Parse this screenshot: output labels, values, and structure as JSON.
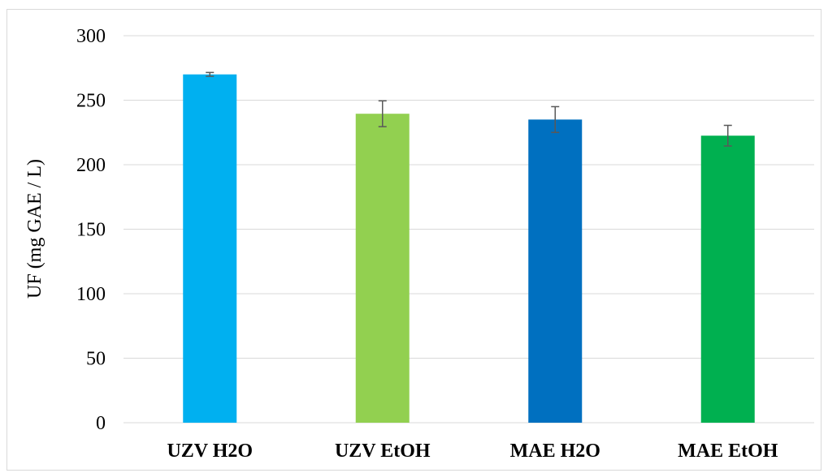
{
  "chart_data": {
    "type": "bar",
    "title": "",
    "xlabel": "",
    "ylabel": "UF (mg GAE / L)",
    "categories": [
      "UZV H2O",
      "UZV EtOH",
      "MAE H2O",
      "MAE EtOH"
    ],
    "values": [
      270,
      239.5,
      235,
      222.5
    ],
    "errors": [
      1.5,
      10,
      10,
      8
    ],
    "colors": [
      "#00b0f0",
      "#92d050",
      "#0070c0",
      "#00b050"
    ],
    "error_bar_color": "#595959",
    "ylim": [
      0,
      300
    ],
    "yticks": [
      0,
      50,
      100,
      150,
      200,
      250,
      300
    ],
    "ytick_labels": [
      "0",
      "50",
      "100",
      "150",
      "200",
      "250",
      "300"
    ],
    "grid": true,
    "gridline_color": "#d9d9d9",
    "legend": "none"
  }
}
